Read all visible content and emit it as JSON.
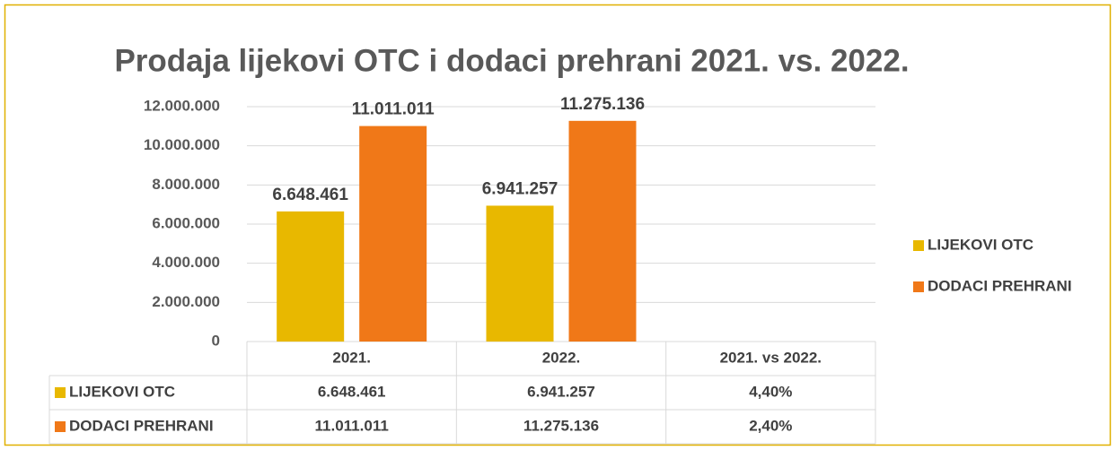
{
  "chart_data": {
    "type": "bar",
    "title": "Prodaja lijekovi OTC i dodaci prehrani 2021. vs. 2022.",
    "categories": [
      "2021.",
      "2022.",
      "2021. vs 2022."
    ],
    "series": [
      {
        "name": "LIJEKOVI OTC",
        "color": "#e8b800",
        "values": [
          6648461,
          6941257,
          0.044
        ],
        "value_labels": [
          "6.648.461",
          "6.941.257",
          "4,40%"
        ]
      },
      {
        "name": "DODACI PREHRANI",
        "color": "#f07818",
        "values": [
          11011011,
          11275136,
          0.024
        ],
        "value_labels": [
          "11.011.011",
          "11.275.136",
          "2,40%"
        ]
      }
    ],
    "ylim": [
      0,
      12000000
    ],
    "yticks": [
      0,
      {
        "value": 2000000,
        "label": "2.000.000"
      },
      {
        "value": 4000000,
        "label": "4.000.000"
      },
      {
        "value": 6000000,
        "label": "6.000.000"
      },
      {
        "value": 8000000,
        "label": "8.000.000"
      },
      {
        "value": 10000000,
        "label": "10.000.000"
      },
      {
        "value": 12000000,
        "label": "12.000.000"
      }
    ],
    "grid": true,
    "legend": "right"
  }
}
